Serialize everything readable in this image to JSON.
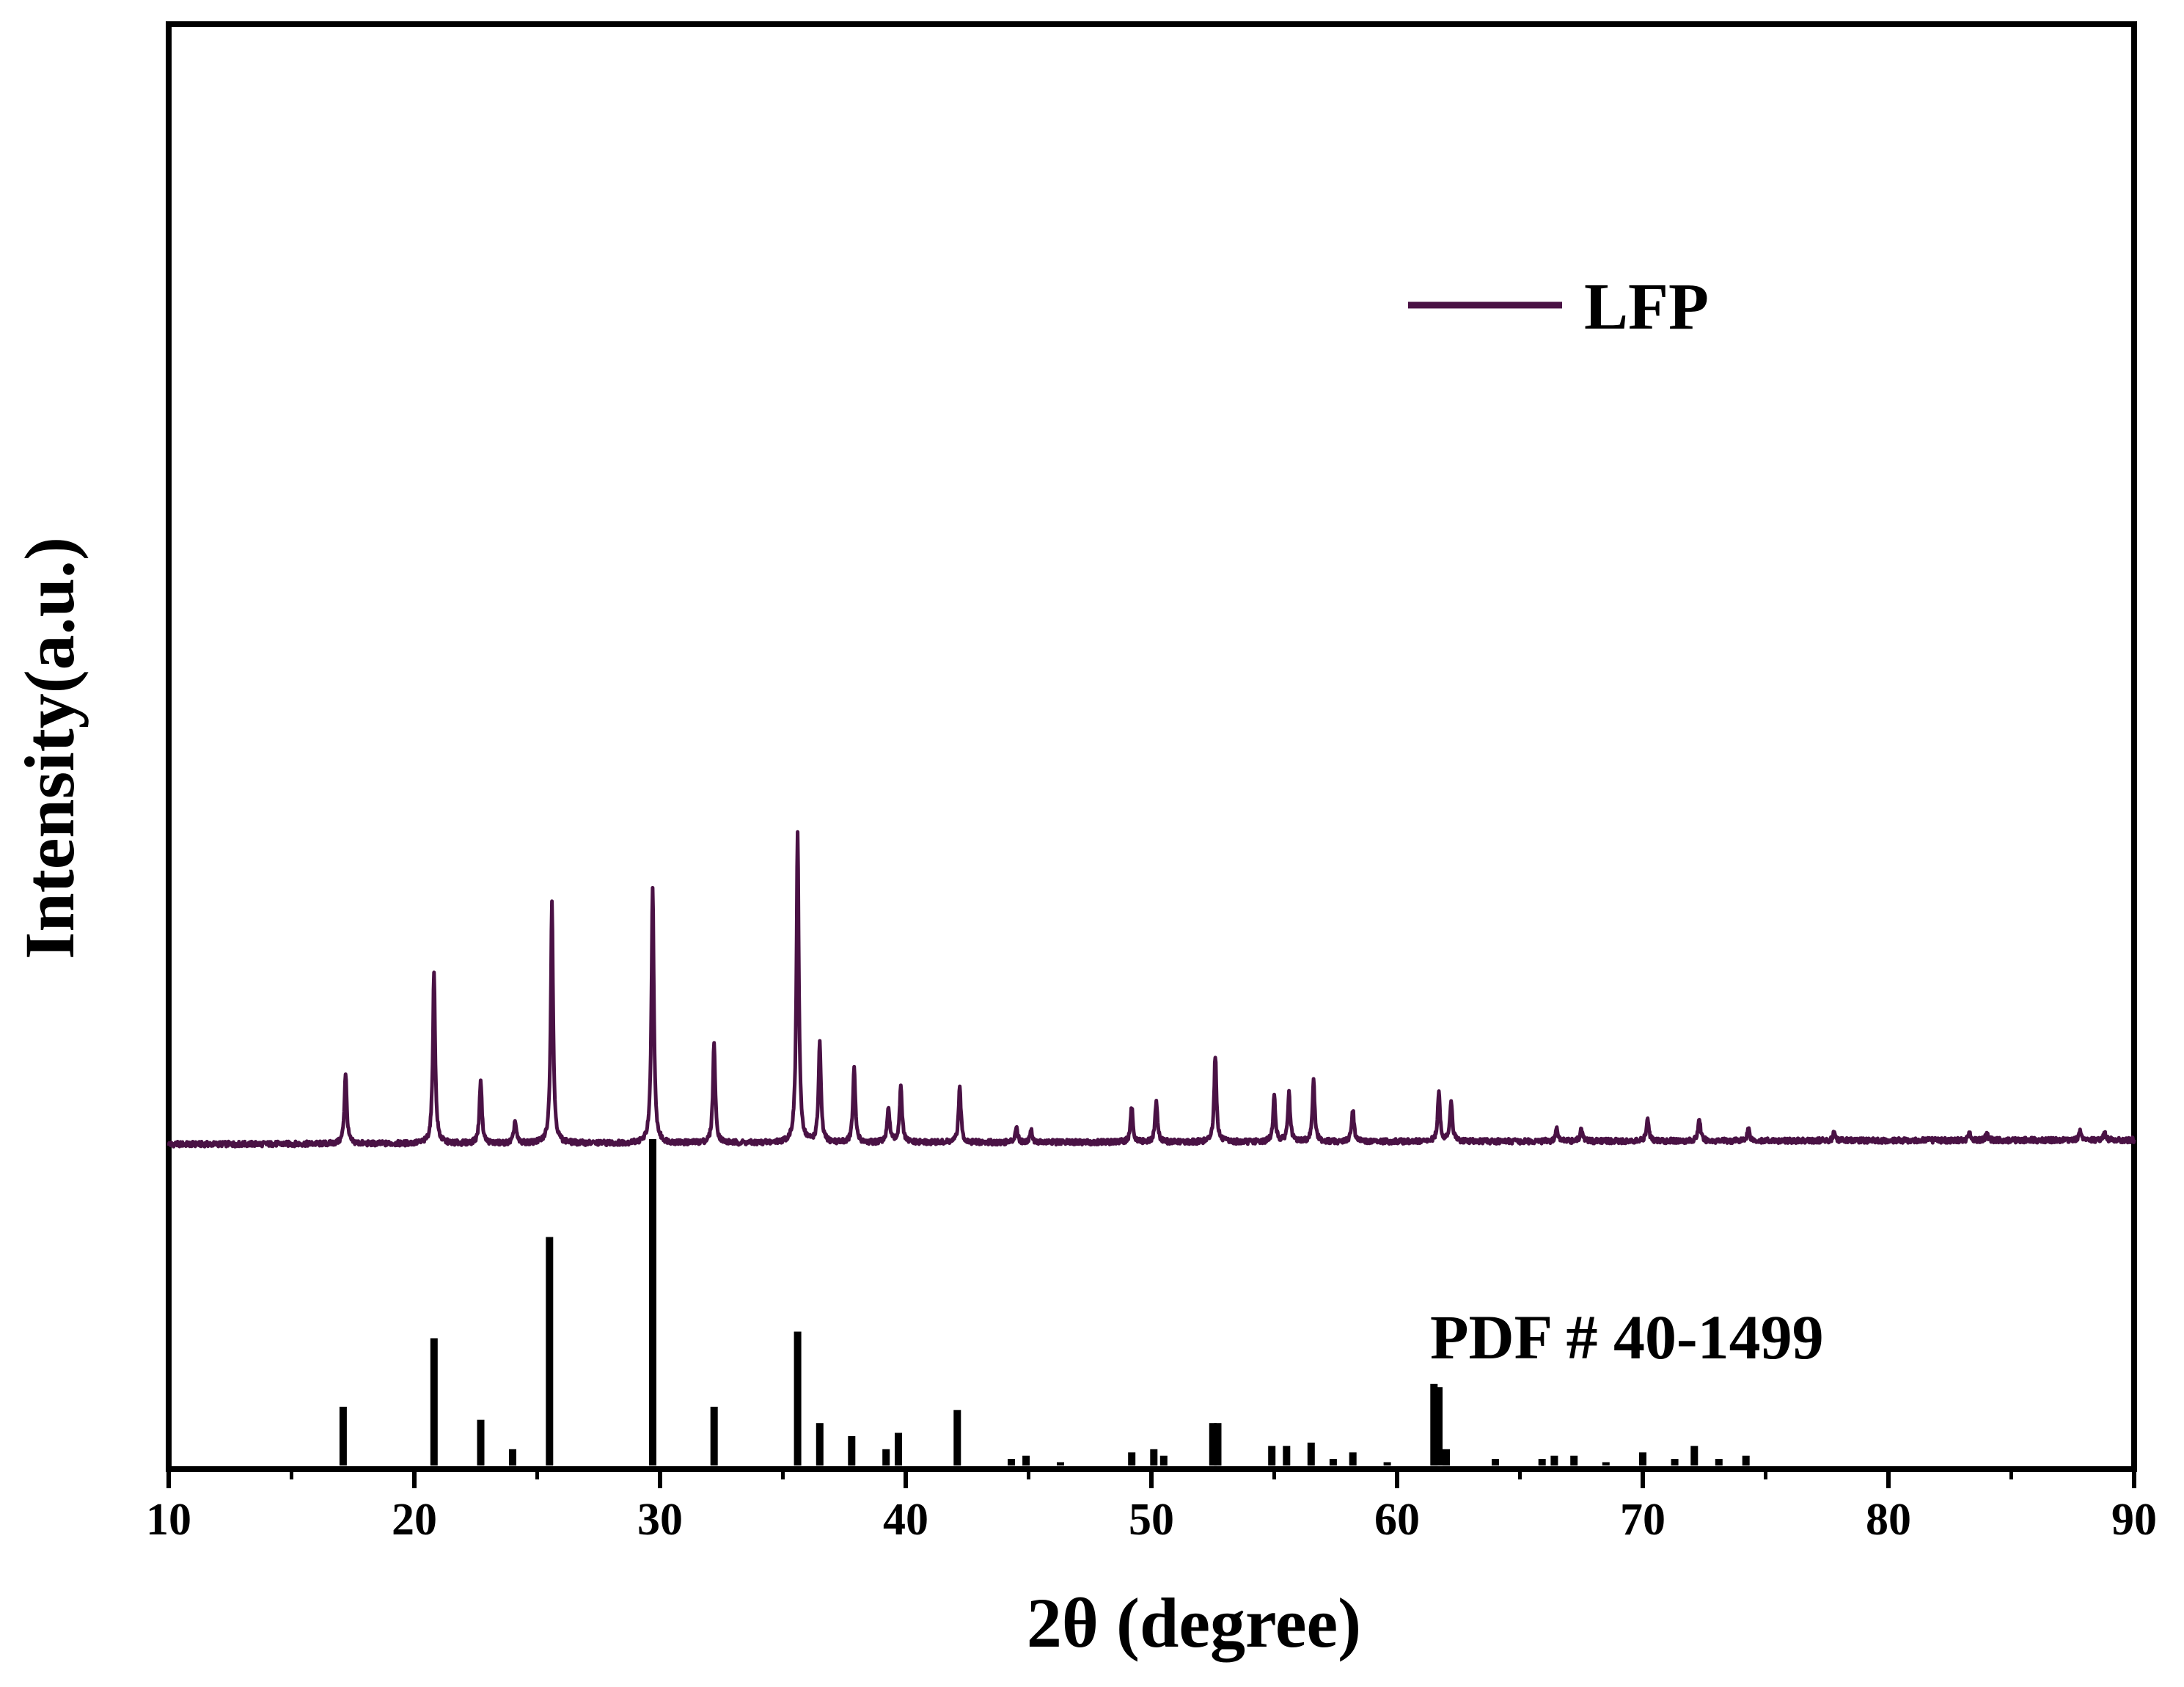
{
  "chart_data": {
    "type": "line",
    "xlabel": "2θ (degree)",
    "ylabel": "Intensity(a.u.)",
    "xlim": [
      10,
      90
    ],
    "x_ticks": [
      10,
      20,
      30,
      40,
      50,
      60,
      70,
      80,
      90
    ],
    "y_ticks_visible": false,
    "grid": false,
    "legend": {
      "position": "top-right",
      "entries": [
        "LFP"
      ]
    },
    "series": [
      {
        "name": "LFP",
        "color": "#4a1245",
        "kind": "xrd-pattern",
        "baseline": 0.0,
        "peaks": [
          {
            "x": 17.2,
            "y": 22
          },
          {
            "x": 20.8,
            "y": 53
          },
          {
            "x": 22.7,
            "y": 20
          },
          {
            "x": 24.1,
            "y": 7
          },
          {
            "x": 25.6,
            "y": 75
          },
          {
            "x": 29.7,
            "y": 80
          },
          {
            "x": 32.2,
            "y": 31
          },
          {
            "x": 35.6,
            "y": 96
          },
          {
            "x": 36.5,
            "y": 31
          },
          {
            "x": 37.9,
            "y": 23
          },
          {
            "x": 39.3,
            "y": 11
          },
          {
            "x": 39.8,
            "y": 18
          },
          {
            "x": 42.2,
            "y": 17
          },
          {
            "x": 44.5,
            "y": 5
          },
          {
            "x": 45.1,
            "y": 4
          },
          {
            "x": 49.2,
            "y": 11
          },
          {
            "x": 50.2,
            "y": 13
          },
          {
            "x": 52.6,
            "y": 27
          },
          {
            "x": 55.0,
            "y": 14
          },
          {
            "x": 55.6,
            "y": 15
          },
          {
            "x": 56.6,
            "y": 19
          },
          {
            "x": 58.2,
            "y": 10
          },
          {
            "x": 61.7,
            "y": 15
          },
          {
            "x": 62.2,
            "y": 13
          },
          {
            "x": 66.5,
            "y": 4
          },
          {
            "x": 67.5,
            "y": 4
          },
          {
            "x": 70.2,
            "y": 7
          },
          {
            "x": 72.3,
            "y": 7
          },
          {
            "x": 74.3,
            "y": 4
          },
          {
            "x": 77.8,
            "y": 3
          },
          {
            "x": 83.3,
            "y": 2
          },
          {
            "x": 84.0,
            "y": 2
          },
          {
            "x": 87.8,
            "y": 3
          },
          {
            "x": 88.8,
            "y": 2
          }
        ]
      },
      {
        "name": "PDF # 40-1499",
        "color": "#000000",
        "kind": "reference-sticks",
        "sticks": [
          {
            "x": 17.1,
            "y": 18
          },
          {
            "x": 20.8,
            "y": 39
          },
          {
            "x": 22.7,
            "y": 14
          },
          {
            "x": 24.0,
            "y": 5
          },
          {
            "x": 25.5,
            "y": 70
          },
          {
            "x": 29.7,
            "y": 100
          },
          {
            "x": 32.2,
            "y": 18
          },
          {
            "x": 35.6,
            "y": 41
          },
          {
            "x": 36.5,
            "y": 13
          },
          {
            "x": 37.8,
            "y": 9
          },
          {
            "x": 39.2,
            "y": 5
          },
          {
            "x": 39.7,
            "y": 10
          },
          {
            "x": 42.1,
            "y": 17
          },
          {
            "x": 44.3,
            "y": 2
          },
          {
            "x": 44.9,
            "y": 3
          },
          {
            "x": 46.3,
            "y": 1
          },
          {
            "x": 49.2,
            "y": 4
          },
          {
            "x": 50.1,
            "y": 5
          },
          {
            "x": 50.5,
            "y": 3
          },
          {
            "x": 52.5,
            "y": 13
          },
          {
            "x": 52.7,
            "y": 13
          },
          {
            "x": 54.9,
            "y": 6
          },
          {
            "x": 55.5,
            "y": 6
          },
          {
            "x": 56.5,
            "y": 7
          },
          {
            "x": 57.4,
            "y": 2
          },
          {
            "x": 58.2,
            "y": 4
          },
          {
            "x": 59.6,
            "y": 1
          },
          {
            "x": 61.5,
            "y": 25
          },
          {
            "x": 61.7,
            "y": 24
          },
          {
            "x": 62.0,
            "y": 5
          },
          {
            "x": 64.0,
            "y": 2
          },
          {
            "x": 65.9,
            "y": 2
          },
          {
            "x": 66.4,
            "y": 3
          },
          {
            "x": 67.2,
            "y": 3
          },
          {
            "x": 68.5,
            "y": 1
          },
          {
            "x": 70.0,
            "y": 4
          },
          {
            "x": 71.3,
            "y": 2
          },
          {
            "x": 72.1,
            "y": 6
          },
          {
            "x": 73.1,
            "y": 2
          },
          {
            "x": 74.2,
            "y": 3
          }
        ]
      }
    ]
  }
}
